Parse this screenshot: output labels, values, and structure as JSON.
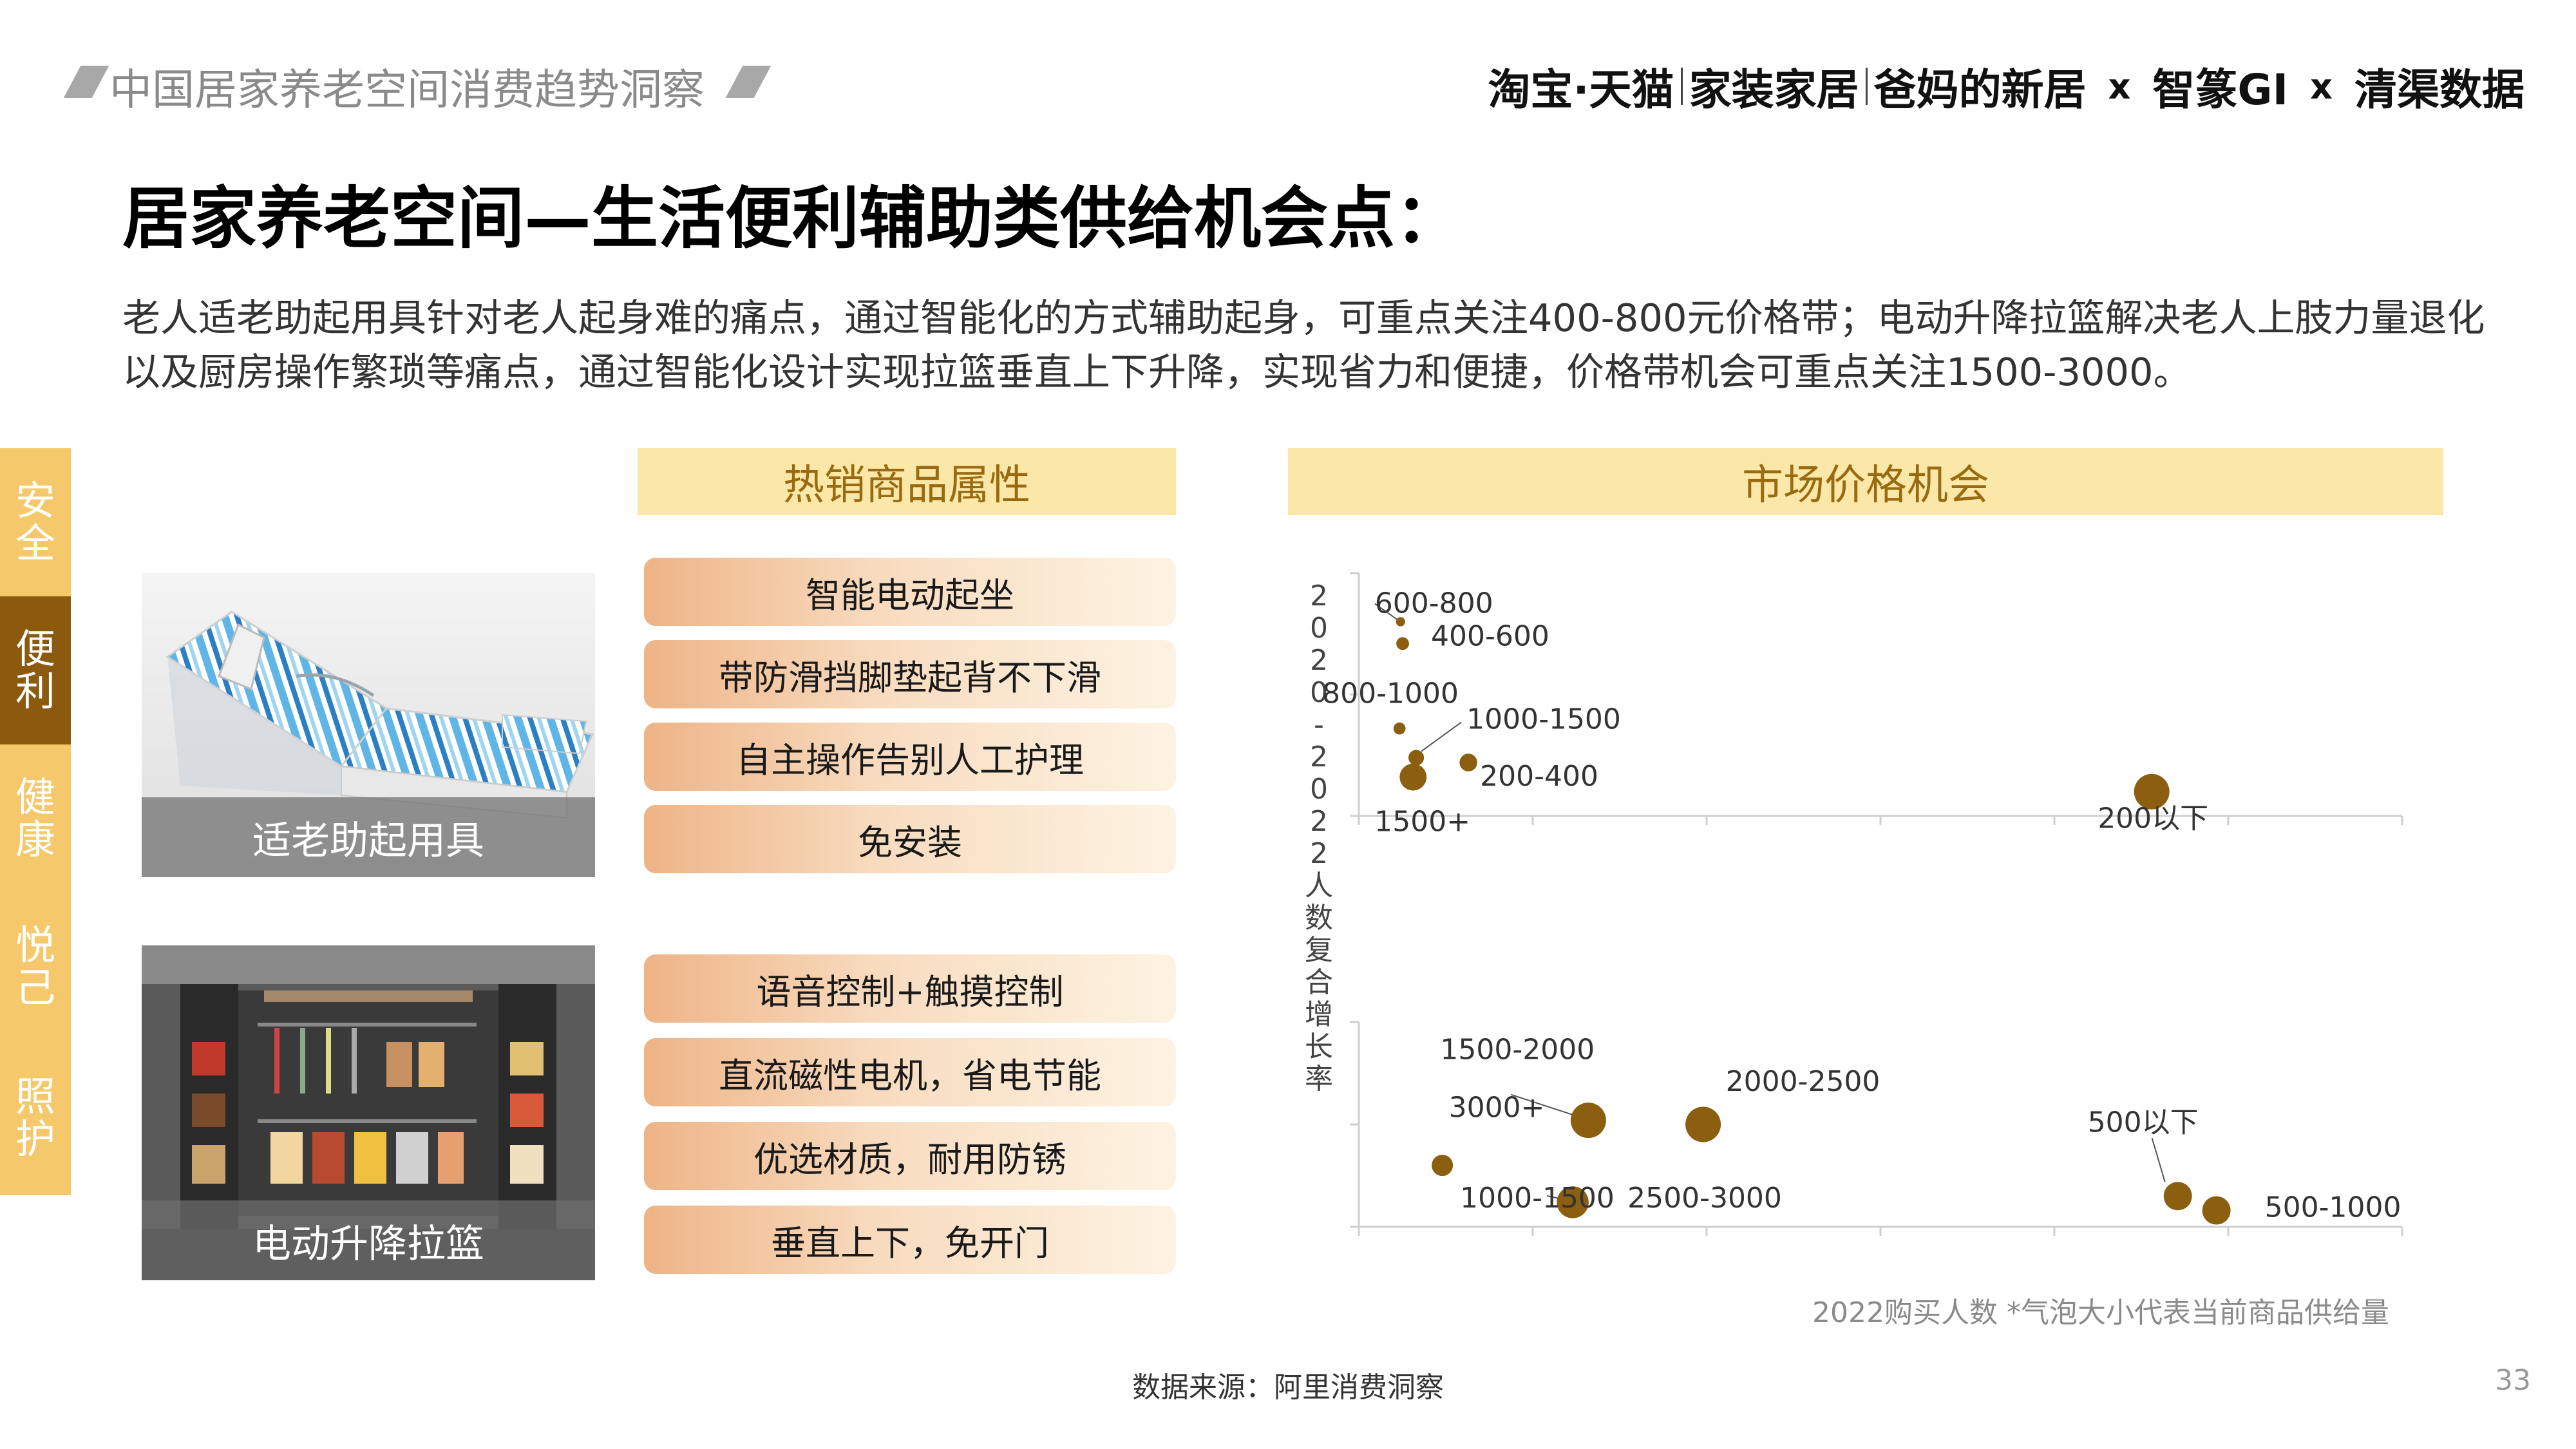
{
  "header": {
    "report_title": "中国居家养老空间消费趋势洞察",
    "brand": {
      "taobao": "淘宝·天猫",
      "home": "家装家居",
      "parents": "爸妈的新居",
      "x1": "x",
      "zhizhuan": "智篆GI",
      "x2": "x",
      "qingqu": "清渠数据"
    }
  },
  "page_title": "居家养老空间—生活便利辅助类供给机会点：",
  "description": "老人适老助起用具针对老人起身难的痛点，通过智能化的方式辅助起身，可重点关注400-800元价格带；电动升降拉篮解决老人上肢力量退化以及厨房操作繁琐等痛点，通过智能化设计实现拉篮垂直上下升降，实现省力和便捷，价格带机会可重点关注1500-3000。",
  "categories": [
    {
      "label": "安全",
      "active": false
    },
    {
      "label": "便利",
      "active": true
    },
    {
      "label": "健康",
      "active": false
    },
    {
      "label": "悦己",
      "active": false
    },
    {
      "label": "照护",
      "active": false
    }
  ],
  "sections": {
    "attributes_header": "热销商品属性",
    "price_header": "市场价格机会"
  },
  "products": [
    {
      "name": "适老助起用具",
      "attributes": [
        "智能电动起坐",
        "带防滑挡脚垫起背不下滑",
        "自主操作告别人工护理",
        "免安装"
      ]
    },
    {
      "name": "电动升降拉篮",
      "attributes": [
        "语音控制+触摸控制",
        "直流磁性电机，省电节能",
        "优选材质，耐用防锈",
        "垂直上下，免开门"
      ]
    }
  ],
  "chart_data": {
    "type": "bubble",
    "y_axis_label": "2020-2022人数复合增长率",
    "x_axis_label": "2022购买人数",
    "footnote": "2022购买人数 *气泡大小代表当前商品供给量",
    "colors": {
      "bubble": "#8b5e10",
      "axis": "#cfcfcf",
      "leader": "#555555"
    },
    "panels": [
      {
        "product": "适老助起用具",
        "points": [
          {
            "label": "600-800",
            "x": 0.04,
            "y": 0.8,
            "size": 0.13
          },
          {
            "label": "400-600",
            "x": 0.042,
            "y": 0.71,
            "size": 0.18
          },
          {
            "label": "800-1000",
            "x": 0.039,
            "y": 0.36,
            "size": 0.17
          },
          {
            "label": "1000-1500",
            "x": 0.055,
            "y": 0.24,
            "size": 0.22
          },
          {
            "label": "200-400",
            "x": 0.105,
            "y": 0.22,
            "size": 0.25
          },
          {
            "label": "1500+",
            "x": 0.052,
            "y": 0.16,
            "size": 0.38
          },
          {
            "label": "200以下",
            "x": 0.76,
            "y": 0.1,
            "size": 0.5
          }
        ]
      },
      {
        "product": "电动升降拉篮",
        "points": [
          {
            "label": "1500-2000",
            "x": 0.22,
            "y": 0.52,
            "size": 0.5
          },
          {
            "label": "2000-2500",
            "x": 0.33,
            "y": 0.5,
            "size": 0.5
          },
          {
            "label": "3000+",
            "x": 0.08,
            "y": 0.3,
            "size": 0.3
          },
          {
            "label": "1000-1500",
            "x": 0.205,
            "y": 0.12,
            "size": 0.45
          },
          {
            "label": "2500-3000",
            "x": 0.205,
            "y": 0.12,
            "size": 0.0
          },
          {
            "label": "500以下",
            "x": 0.785,
            "y": 0.15,
            "size": 0.4
          },
          {
            "label": "500-1000",
            "x": 0.822,
            "y": 0.08,
            "size": 0.4
          }
        ]
      }
    ]
  },
  "source": "数据来源：阿里消费洞察",
  "page_number": "33"
}
